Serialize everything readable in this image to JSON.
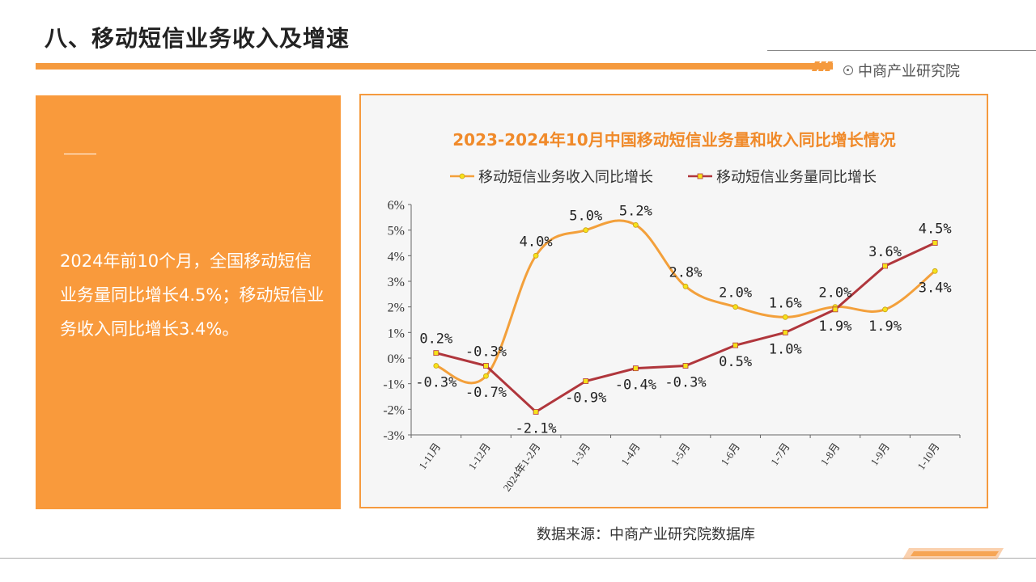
{
  "page": {
    "title": "八、移动短信业务收入及增速",
    "brand": "中商产业研究院",
    "summary": "2024年前10个月，全国移动短信业务量同比增长4.5%；移动短信业务收入同比增长3.4%。",
    "source": "数据来源：中商产业研究院数据库"
  },
  "chart_data": {
    "type": "line",
    "title": "2023-2024年10月中国移动短信业务量和收入同比增长情况",
    "categories": [
      "1-11月",
      "1-12月",
      "2024年1-2月",
      "1-3月",
      "1-4月",
      "1-5月",
      "1-6月",
      "1-7月",
      "1-8月",
      "1-9月",
      "1-10月"
    ],
    "series": [
      {
        "name": "移动短信业务收入同比增长",
        "values": [
          -0.3,
          -0.7,
          4.0,
          5.0,
          5.2,
          2.8,
          2.0,
          1.6,
          2.0,
          1.9,
          3.4
        ],
        "color": "#f3a03b",
        "smooth": true
      },
      {
        "name": "移动短信业务量同比增长",
        "values": [
          0.2,
          -0.3,
          -2.1,
          -0.9,
          -0.4,
          -0.3,
          0.5,
          1.0,
          1.9,
          3.6,
          4.5
        ],
        "color": "#b0363c",
        "smooth": false
      }
    ],
    "ylim": [
      -3,
      6
    ],
    "ytick_step": 1,
    "y_unit": "%",
    "grid": false,
    "legend": "top"
  }
}
